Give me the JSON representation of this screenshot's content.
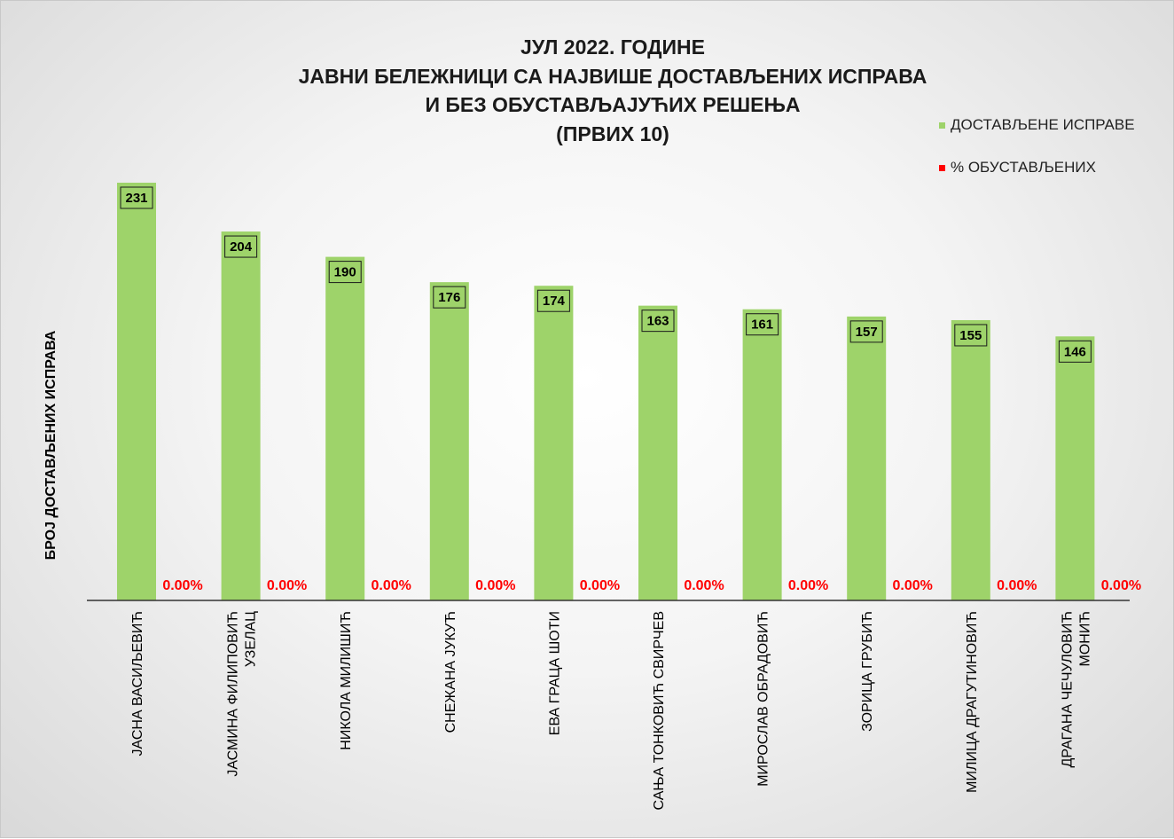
{
  "chart_data": {
    "type": "bar",
    "title_lines": [
      "ЈУЛ 2022. ГОДИНЕ",
      "ЈАВНИ БЕЛЕЖНИЦИ СА НАЈВИШЕ ДОСТАВЉЕНИХ ИСПРАВА",
      "И БЕЗ ОБУСТАВЉАЈУЋИХ РЕШЕЊА",
      "(ПРВИХ 10)"
    ],
    "ylabel": "БРОЈ ДОСТАВЉЕНИХ ИСПРАВА",
    "xlabel": "",
    "categories": [
      [
        "ЈАСНА ВАСИЉЕВИЋ"
      ],
      [
        "ЈАСМИНА ФИЛИПОВИЋ",
        "УЗЕЛАЦ"
      ],
      [
        "НИКОЛА МИЛИШИЋ"
      ],
      [
        "СНЕЖАНА ЈУКУЋ"
      ],
      [
        "ЕВА ГРАЦА ШОТИ"
      ],
      [
        "САЊА ТОНКОВИЋ СВИРЧЕВ"
      ],
      [
        "МИРОСЛАВ ОБРАДОВИЋ"
      ],
      [
        "ЗОРИЦА ГРУБИЋ"
      ],
      [
        "МИЛИЦА ДРАГУТИНОВИЋ"
      ],
      [
        "ДРАГАНА ЧЕЧУЛОВИЋ",
        "МОНИЋ"
      ]
    ],
    "series": [
      {
        "name": "ДОСТАВЉЕНЕ ИСПРАВЕ",
        "color": "#9ed36a",
        "values": [
          231,
          204,
          190,
          176,
          174,
          163,
          161,
          157,
          155,
          146
        ],
        "labels": [
          "231",
          "204",
          "190",
          "176",
          "174",
          "163",
          "161",
          "157",
          "155",
          "146"
        ]
      },
      {
        "name": "% ОБУСТАВЉЕНИХ",
        "color": "#ff0000",
        "values": [
          0,
          0,
          0,
          0,
          0,
          0,
          0,
          0,
          0,
          0
        ],
        "labels": [
          "0.00%",
          "0.00%",
          "0.00%",
          "0.00%",
          "0.00%",
          "0.00%",
          "0.00%",
          "0.00%",
          "0.00%",
          "0.00%"
        ]
      }
    ],
    "ylim": [
      0,
      231
    ],
    "grid": false,
    "legend_position": "top-right"
  }
}
